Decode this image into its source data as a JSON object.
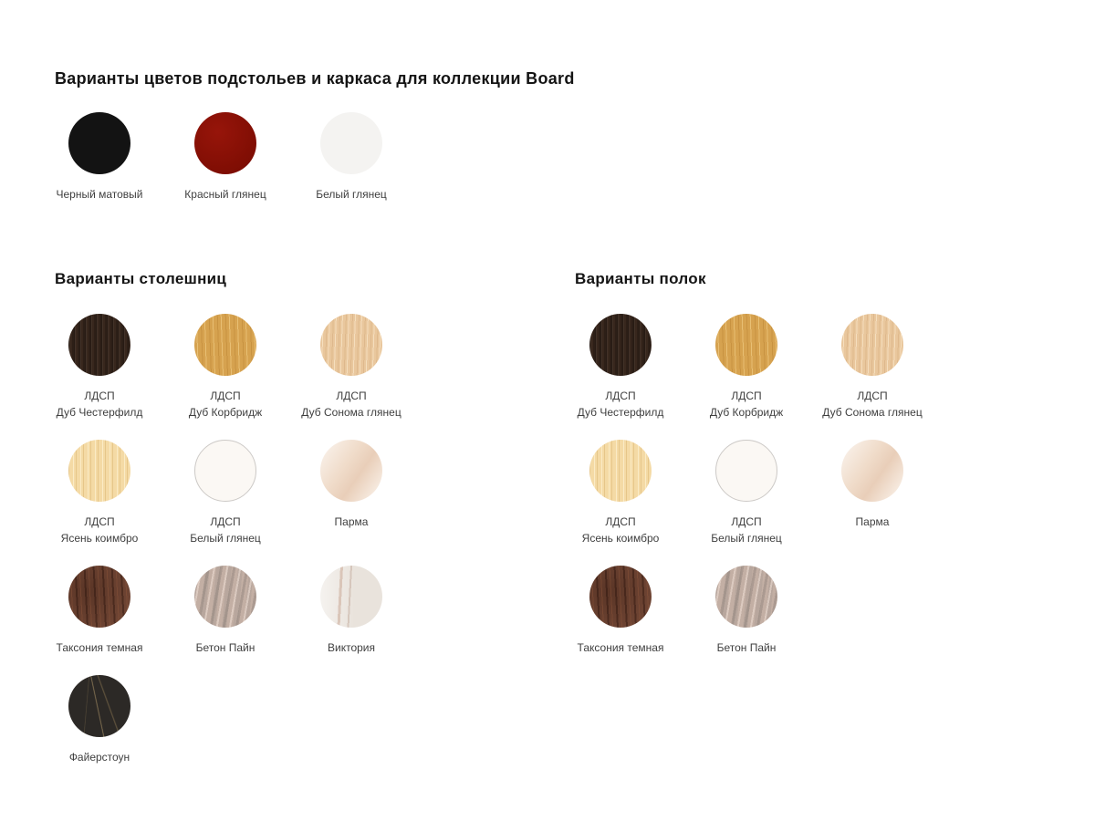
{
  "page": {
    "background": "#ffffff"
  },
  "header": {
    "title": "Варианты цветов подстольев и каркаса для коллекции Board"
  },
  "frame_colors": {
    "items": [
      {
        "label": "Черный матовый",
        "texture": "black",
        "color": "#131313"
      },
      {
        "label": "Красный глянец",
        "texture": "red",
        "color": "#8a1206"
      },
      {
        "label": "Белый глянец",
        "texture": "white-gloss",
        "color": "#f4f3f1"
      }
    ]
  },
  "tabletops": {
    "heading": "Варианты столешниц",
    "rows": [
      [
        {
          "lines": [
            "ЛДСП",
            "Дуб Честерфилд"
          ],
          "texture": "chesterfield",
          "color": "#38271d"
        },
        {
          "lines": [
            "ЛДСП",
            "Дуб Корбридж"
          ],
          "texture": "corbridge",
          "color": "#d6a24f"
        },
        {
          "lines": [
            "ЛДСП",
            "Дуб Сонома глянец"
          ],
          "texture": "sonoma",
          "color": "#e9c79d"
        }
      ],
      [
        {
          "lines": [
            "ЛДСП",
            "Ясень коимбро"
          ],
          "texture": "ash",
          "color": "#f4daa5"
        },
        {
          "lines": [
            "ЛДСП",
            "Белый глянец"
          ],
          "texture": "white-ldsp",
          "color": "#fbf8f4"
        },
        {
          "lines": [
            "Парма"
          ],
          "texture": "parma",
          "color": "#f0dcca"
        }
      ],
      [
        {
          "lines": [
            "Таксония темная"
          ],
          "texture": "taxonia",
          "color": "#6a4130"
        },
        {
          "lines": [
            "Бетон Пайн"
          ],
          "texture": "concrete",
          "color": "#c3afa4"
        },
        {
          "lines": [
            "Виктория"
          ],
          "texture": "victoria",
          "color": "#e9e3dc"
        }
      ],
      [
        {
          "lines": [
            "Файерстоун"
          ],
          "texture": "firestone",
          "color": "#2c2926"
        }
      ]
    ]
  },
  "shelves": {
    "heading": "Варианты полок",
    "rows": [
      [
        {
          "lines": [
            "ЛДСП",
            "Дуб Честерфилд"
          ],
          "texture": "chesterfield",
          "color": "#38271d"
        },
        {
          "lines": [
            "ЛДСП",
            "Дуб Корбридж"
          ],
          "texture": "corbridge",
          "color": "#d6a24f"
        },
        {
          "lines": [
            "ЛДСП",
            "Дуб Сонома глянец"
          ],
          "texture": "sonoma",
          "color": "#e9c79d"
        }
      ],
      [
        {
          "lines": [
            "ЛДСП",
            "Ясень коимбро"
          ],
          "texture": "ash",
          "color": "#f4daa5"
        },
        {
          "lines": [
            "ЛДСП",
            "Белый глянец"
          ],
          "texture": "white-ldsp",
          "color": "#fbf8f4"
        },
        {
          "lines": [
            "Парма"
          ],
          "texture": "parma",
          "color": "#f0dcca"
        }
      ],
      [
        {
          "lines": [
            "Таксония темная"
          ],
          "texture": "taxonia",
          "color": "#6a4130"
        },
        {
          "lines": [
            "Бетон Пайн"
          ],
          "texture": "concrete",
          "color": "#c3afa4"
        }
      ]
    ]
  }
}
